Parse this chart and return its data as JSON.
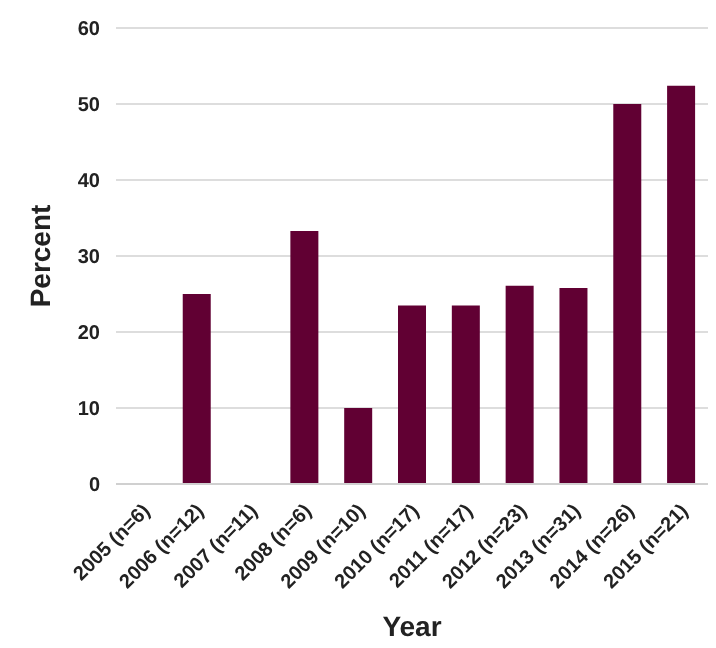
{
  "chart_data": {
    "type": "bar",
    "xlabel": "Year",
    "ylabel": "Percent",
    "categories": [
      "2005 (n=6)",
      "2006 (n=12)",
      "2007 (n=11)",
      "2008 (n=6)",
      "2009 (n=10)",
      "2010 (n=17)",
      "2011 (n=17)",
      "2012 (n=23)",
      "2013 (n=31)",
      "2014 (n=26)",
      "2015 (n=21)"
    ],
    "values": [
      0,
      25,
      0,
      33.3,
      10,
      23.5,
      23.5,
      26.1,
      25.8,
      50,
      52.4
    ],
    "color": "#610033",
    "ylim": [
      0,
      60
    ],
    "yticks": [
      0,
      10,
      20,
      30,
      40,
      50,
      60
    ],
    "grid": "y"
  }
}
